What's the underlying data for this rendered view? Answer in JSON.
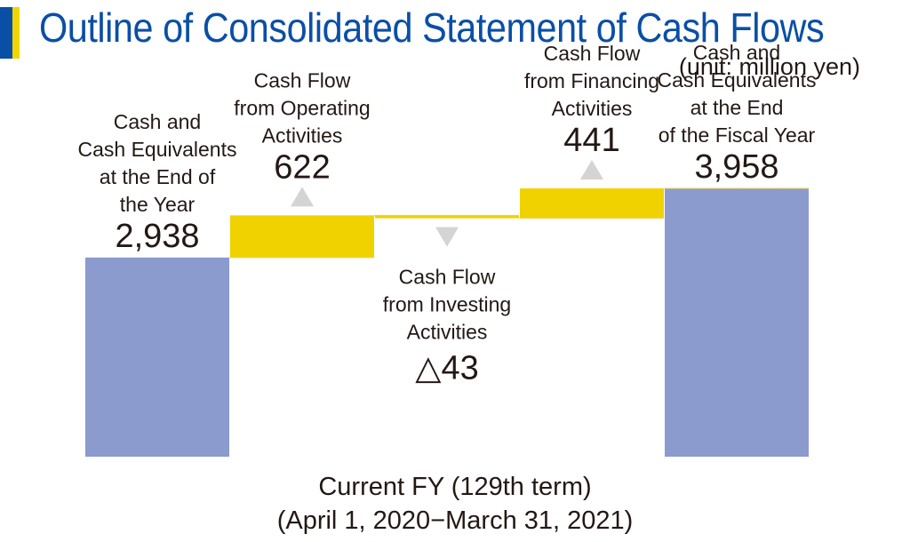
{
  "title": "Outline of Consolidated Statement of Cash Flows",
  "unit": "(unit: million yen)",
  "footer": {
    "line1": "Current FY (129th term)",
    "line2": "(April 1, 2020−March 31, 2021)"
  },
  "colors": {
    "total_bar": "#8b9bce",
    "flow_bar": "#f0d200",
    "arrow": "#d4d4d4",
    "title": "#0a4fa6"
  },
  "chart_data": {
    "type": "bar",
    "subtype": "waterfall",
    "unit": "million yen",
    "categories": [
      "Cash and Cash Equivalents at the End of the Year",
      "Cash Flow from Operating Activities",
      "Cash Flow from Investing Activities",
      "Cash Flow from Financing Activities",
      "Cash and Cash Equivalents at the End of the Fiscal Year"
    ],
    "bars": [
      {
        "label_lines": [
          "Cash and",
          "Cash Equivalents",
          "at the End of",
          "the Year"
        ],
        "value": 2938,
        "display": "2,938",
        "kind": "total",
        "direction": "none"
      },
      {
        "label_lines": [
          "Cash Flow",
          "from Operating",
          "Activities"
        ],
        "value": 622,
        "display": "622",
        "kind": "flow",
        "direction": "up"
      },
      {
        "label_lines": [
          "Cash Flow",
          "from Investing",
          "Activities"
        ],
        "value": -43,
        "display": "△43",
        "kind": "flow",
        "direction": "down"
      },
      {
        "label_lines": [
          "Cash Flow",
          "from Financing",
          "Activities"
        ],
        "value": 441,
        "display": "441",
        "kind": "flow",
        "direction": "up"
      },
      {
        "label_lines": [
          "Cash and",
          "Cash Equivalents",
          "at the End",
          "of the Fiscal Year"
        ],
        "value": 3958,
        "display": "3,958",
        "kind": "total",
        "direction": "none"
      }
    ]
  }
}
